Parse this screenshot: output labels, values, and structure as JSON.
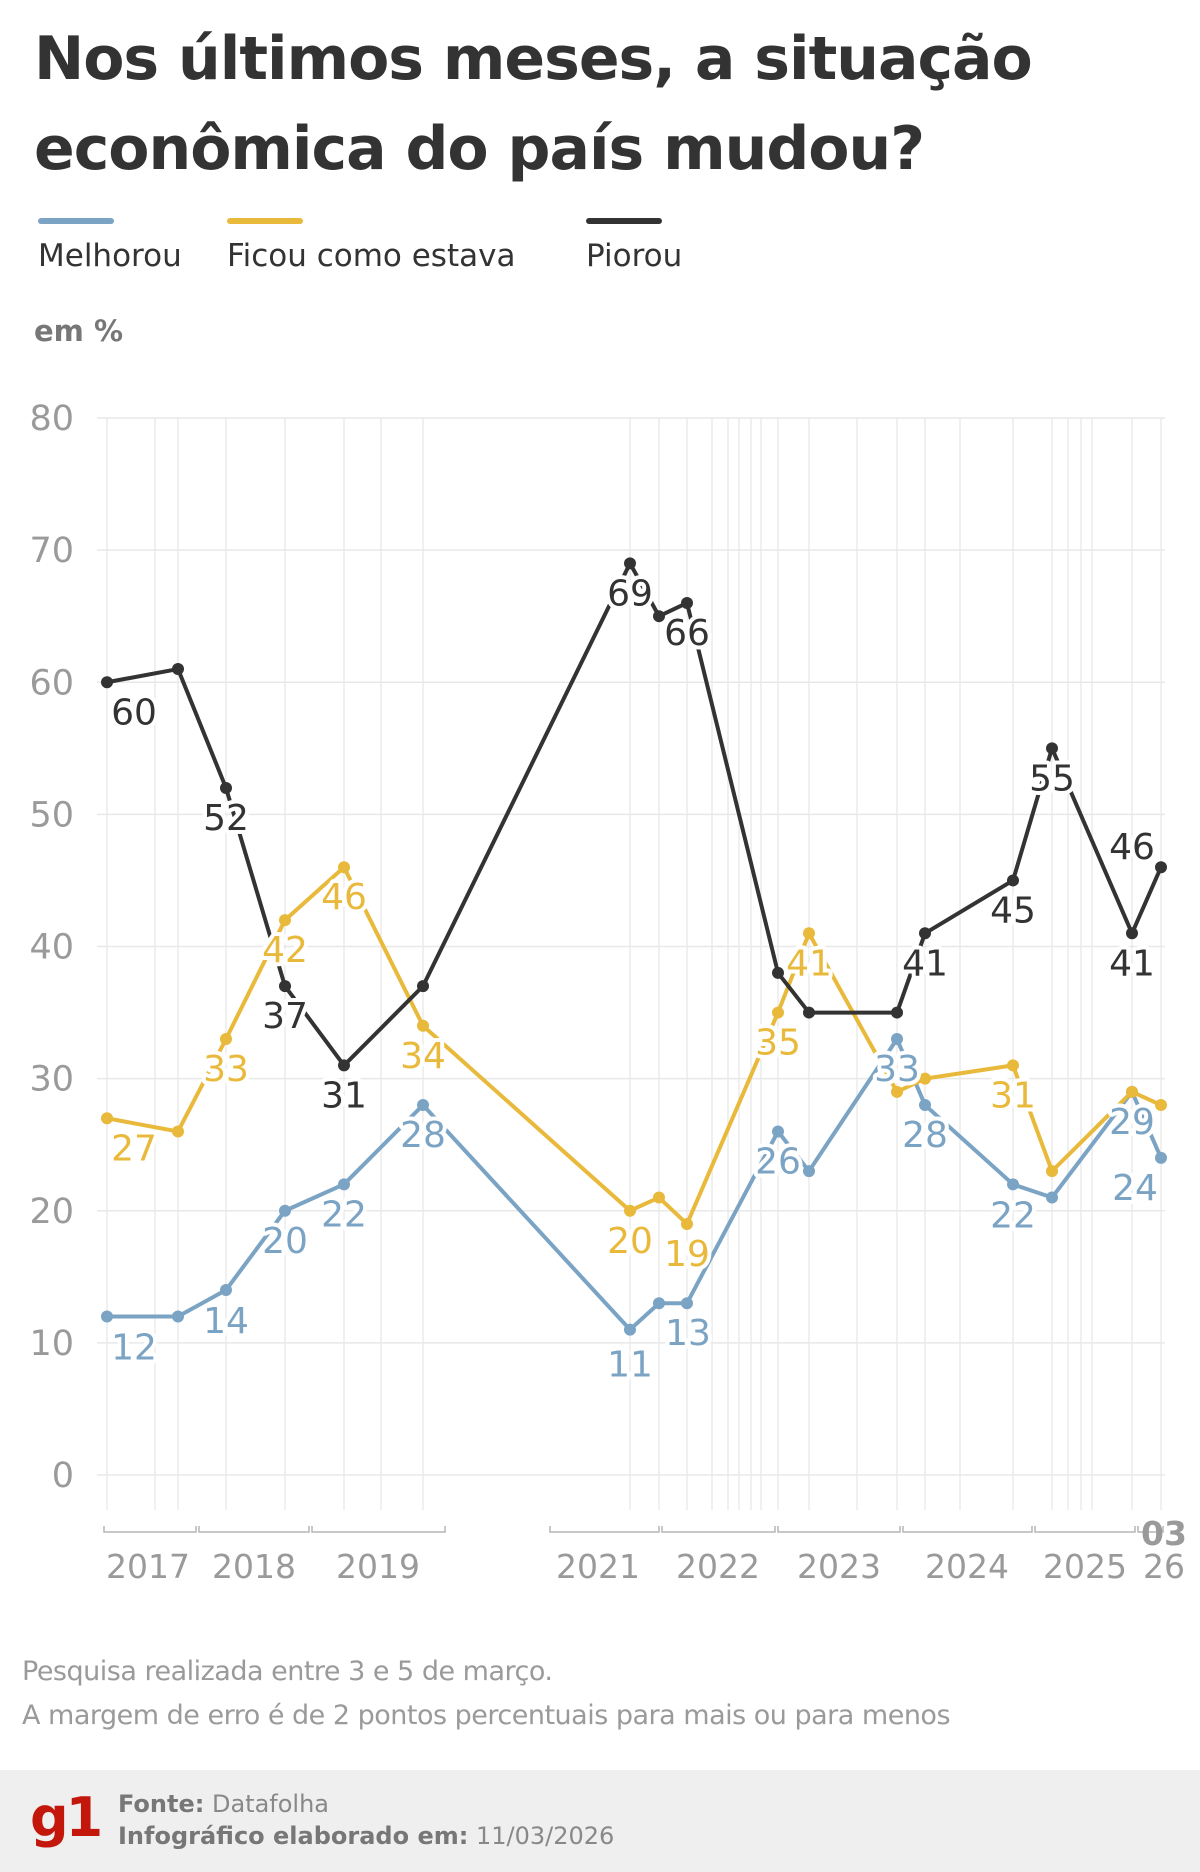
{
  "header": {
    "title": "Nos últimos meses, a situação econômica do país mudou?",
    "unit": "em %"
  },
  "legend": [
    {
      "label": "Melhorou",
      "color": "#7ba3c4"
    },
    {
      "label": "Ficou como estava",
      "color": "#e8b93a"
    },
    {
      "label": "Piorou",
      "color": "#333333"
    }
  ],
  "chart_data": {
    "type": "line",
    "title": "Nos últimos meses, a situação econômica do país mudou?",
    "ylabel": "em %",
    "xlabel": "",
    "ylim": [
      0,
      80
    ],
    "yticks": [
      "0",
      "10",
      "20",
      "30",
      "40",
      "50",
      "60",
      "70",
      "80"
    ],
    "grid": true,
    "legend_position": "top",
    "x_axis_labels": [
      "2017",
      "2018",
      "2019",
      "2021",
      "2022",
      "2023",
      "2024",
      "2025",
      "03",
      "26"
    ],
    "series": [
      {
        "name": "Melhorou",
        "color": "#7ba3c4",
        "values": [
          12,
          12,
          14,
          20,
          22,
          28,
          11,
          13,
          13,
          26,
          23,
          33,
          28,
          22,
          21,
          29,
          24
        ]
      },
      {
        "name": "Ficou como estava",
        "color": "#e8b93a",
        "values": [
          27,
          26,
          33,
          42,
          46,
          34,
          20,
          21,
          19,
          35,
          41,
          29,
          30,
          31,
          23,
          29,
          28
        ]
      },
      {
        "name": "Piorou",
        "color": "#333333",
        "values": [
          60,
          61,
          52,
          37,
          31,
          37,
          69,
          65,
          66,
          38,
          35,
          35,
          41,
          45,
          55,
          41,
          46
        ]
      }
    ],
    "labeled_points": {
      "Melhorou": [
        "12",
        "14",
        "20",
        "22",
        "28",
        "11",
        "13",
        "26",
        "33",
        "28",
        "22",
        "29",
        "24"
      ],
      "Ficou como estava": [
        "27",
        "33",
        "42",
        "46",
        "34",
        "20",
        "19",
        "35",
        "41",
        "31"
      ],
      "Piorou": [
        "60",
        "52",
        "37",
        "31",
        "69",
        "66",
        "41",
        "45",
        "55",
        "46",
        "41"
      ]
    }
  },
  "notes": {
    "line1": "Pesquisa realizada entre 3 e 5 de março.",
    "line2": "A margem de erro é de 2 pontos percentuais para mais ou para menos"
  },
  "footer": {
    "logo": "g1",
    "source_label": "Fonte:",
    "source_value": "Datafolha",
    "date_label": "Infográfico elaborado em:",
    "date_value": "11/03/2026"
  }
}
